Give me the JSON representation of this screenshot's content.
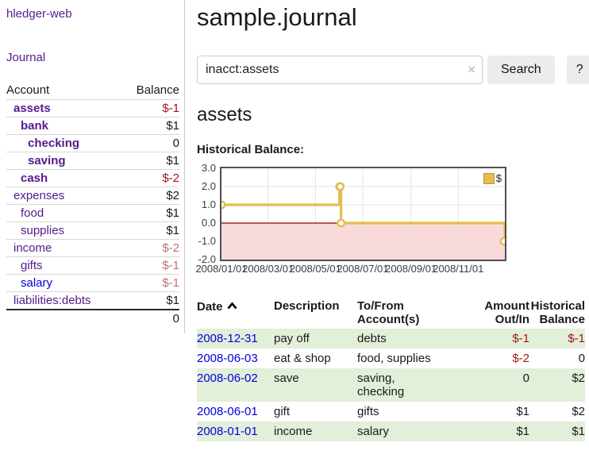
{
  "app": {
    "brand": "hledger-web",
    "nav_journal": "Journal"
  },
  "sidebar": {
    "headers": {
      "account": "Account",
      "balance": "Balance"
    },
    "rows": [
      {
        "name": "assets",
        "depth": 1,
        "bold": true,
        "balance": "$-1"
      },
      {
        "name": "bank",
        "depth": 2,
        "bold": true,
        "balance": "$1"
      },
      {
        "name": "checking",
        "depth": 3,
        "bold": true,
        "balance": "0"
      },
      {
        "name": "saving",
        "depth": 3,
        "bold": true,
        "balance": "$1"
      },
      {
        "name": "cash",
        "depth": 2,
        "bold": true,
        "balance": "$-2"
      },
      {
        "name": "expenses",
        "depth": 1,
        "bold": false,
        "balance": "$2"
      },
      {
        "name": "food",
        "depth": 2,
        "bold": false,
        "balance": "$1"
      },
      {
        "name": "supplies",
        "depth": 2,
        "bold": false,
        "balance": "$1"
      },
      {
        "name": "income",
        "depth": 1,
        "bold": false,
        "balance": "$-2"
      },
      {
        "name": "gifts",
        "depth": 2,
        "bold": false,
        "balance": "$-1"
      },
      {
        "name": "salary",
        "depth": 2,
        "bold": false,
        "balance": "$-1",
        "link_color": "blue"
      },
      {
        "name": "liabilities:debts",
        "depth": 1,
        "bold": false,
        "balance": "$1"
      }
    ],
    "total": "0"
  },
  "main": {
    "title": "sample.journal",
    "search": {
      "value": "inacct:assets",
      "clear_icon": "×",
      "button": "Search",
      "help_button": "?"
    },
    "account_heading": "assets",
    "chart_label": "Historical Balance:"
  },
  "chart_data": {
    "type": "line",
    "step": true,
    "title": "Historical Balance",
    "x": [
      "2008-01-01",
      "2008-06-01",
      "2008-06-02",
      "2008-06-03",
      "2008-12-31"
    ],
    "values": [
      1,
      2,
      2,
      0,
      -1
    ],
    "xlim": [
      "2008-01-01",
      "2008-12-31"
    ],
    "ylim": [
      -2,
      3
    ],
    "ytick_labels": [
      "3.0",
      "2.0",
      "1.0",
      "0.0",
      "-1.0",
      "-2.0"
    ],
    "xticks": [
      {
        "date": "2008-01-01",
        "label": "2008/01/01"
      },
      {
        "date": "2008-03-01",
        "label": "2008/03/01"
      },
      {
        "date": "2008-05-01",
        "label": "2008/05/01"
      },
      {
        "date": "2008-07-01",
        "label": "2008/07/01"
      },
      {
        "date": "2008-09-01",
        "label": "2008/09/01"
      },
      {
        "date": "2008-11-01",
        "label": "2008/11/01"
      }
    ],
    "legend": [
      {
        "label": "$",
        "color": "#e6bc50"
      }
    ],
    "grid": true,
    "legend_position": "top-right",
    "line_color": "#e6bc50",
    "marker_fill": "#ffffff",
    "negative_fill": "#f9dada",
    "zero_line_color": "#8b0000",
    "grid_color": "#e3e3e3"
  },
  "register": {
    "headers": {
      "date": "Date",
      "description": "Description",
      "accounts": "To/From Account(s)",
      "amount": "Amount Out/In",
      "balance": "Historical Balance"
    },
    "sort_icon": "chevron-up",
    "rows": [
      {
        "date": "2008-12-31",
        "description": "pay off",
        "accounts": "debts",
        "amount": "$-1",
        "balance": "$-1"
      },
      {
        "date": "2008-06-03",
        "description": "eat & shop",
        "accounts": "food, supplies",
        "amount": "$-2",
        "balance": "0"
      },
      {
        "date": "2008-06-02",
        "description": "save",
        "accounts": "saving, checking",
        "amount": "0",
        "balance": "$2"
      },
      {
        "date": "2008-06-01",
        "description": "gift",
        "accounts": "gifts",
        "amount": "$1",
        "balance": "$2"
      },
      {
        "date": "2008-01-01",
        "description": "income",
        "accounts": "salary",
        "amount": "$1",
        "balance": "$1"
      }
    ]
  }
}
